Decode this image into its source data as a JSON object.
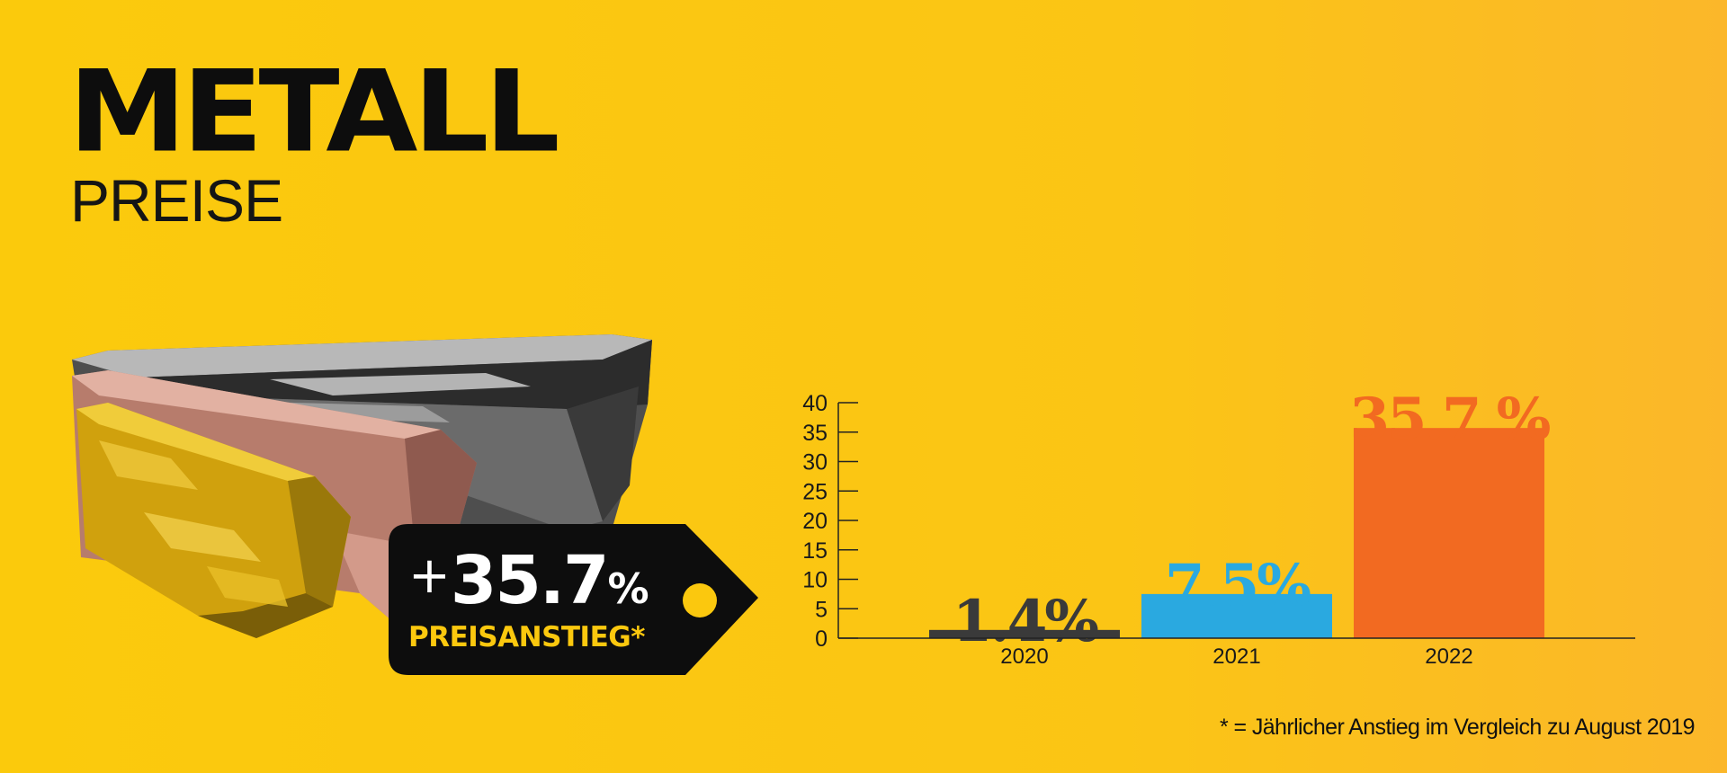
{
  "header": {
    "title": "METALL",
    "subtitle": "PREISE"
  },
  "price_tag": {
    "plus": "+",
    "value": "35.7",
    "percent": "%",
    "label": "PREISANSTIEG*"
  },
  "footnote": "* = Jährlicher Anstieg im Vergleich zu August 2019",
  "illustration": {
    "icon": "metal-bars-illustration",
    "colors": {
      "gold": "#d8a70d",
      "copper": "#c88a7a",
      "steel": "#5a5a5a"
    }
  },
  "colors": {
    "background": "#fbc80e",
    "tag": "#0d0d0d",
    "text": "#111111"
  },
  "chart_data": {
    "type": "bar",
    "categories": [
      "2020",
      "2021",
      "2022"
    ],
    "values": [
      1.4,
      7.5,
      35.7
    ],
    "data_labels": [
      "1.4%",
      "7.5%",
      "35.7 %"
    ],
    "colors": [
      "#3a3a3a",
      "#2aa9e0",
      "#f26a21"
    ],
    "ylim": [
      0,
      40
    ],
    "yticks": [
      0,
      5,
      10,
      15,
      20,
      25,
      30,
      35,
      40
    ],
    "grid": false,
    "legend": "none",
    "title": "",
    "xlabel": "",
    "ylabel": ""
  }
}
